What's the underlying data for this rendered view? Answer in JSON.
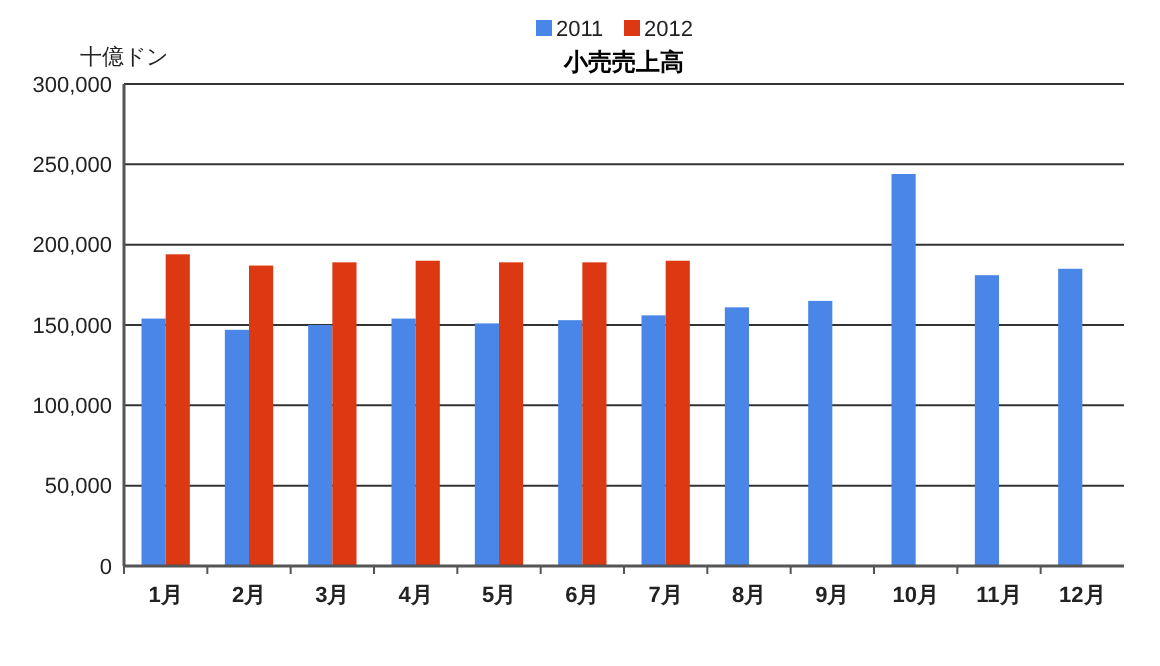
{
  "chart_data": {
    "type": "bar",
    "title": "小売売上高",
    "ylabel": "十億ドン",
    "categories": [
      "1月",
      "2月",
      "3月",
      "4月",
      "5月",
      "6月",
      "7月",
      "8月",
      "9月",
      "10月",
      "11月",
      "12月"
    ],
    "series": [
      {
        "name": "2011",
        "color": "#4a86e8",
        "values": [
          154000,
          147000,
          150000,
          154000,
          151000,
          153000,
          156000,
          161000,
          165000,
          244000,
          181000,
          185000
        ]
      },
      {
        "name": "2012",
        "color": "#dc3912",
        "values": [
          194000,
          187000,
          189000,
          190000,
          189000,
          189000,
          190000,
          null,
          null,
          null,
          null,
          null
        ]
      }
    ],
    "ylim": [
      0,
      300000
    ],
    "yticks": [
      {
        "value": 0,
        "label": "0"
      },
      {
        "value": 50000,
        "label": "50,000"
      },
      {
        "value": 100000,
        "label": "100,000"
      },
      {
        "value": 150000,
        "label": "150,000"
      },
      {
        "value": 200000,
        "label": "200,000"
      },
      {
        "value": 250000,
        "label": "250,000"
      },
      {
        "value": 300000,
        "label": "300,000"
      }
    ],
    "grid": "y",
    "legend": "top"
  }
}
